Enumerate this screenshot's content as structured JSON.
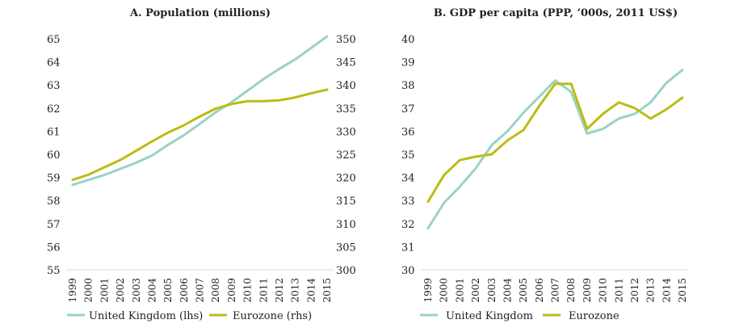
{
  "chart_data": [
    {
      "type": "line",
      "title": "A. Population (millions)",
      "x": [
        "1999",
        "2000",
        "2001",
        "2002",
        "2003",
        "2004",
        "2005",
        "2006",
        "2007",
        "2008",
        "2009",
        "2010",
        "2011",
        "2012",
        "2013",
        "2014",
        "2015"
      ],
      "ylim_left": [
        55,
        65
      ],
      "yticks_left": [
        "55",
        "56",
        "57",
        "58",
        "59",
        "60",
        "61",
        "62",
        "63",
        "64",
        "65"
      ],
      "ylim_right": [
        300,
        350
      ],
      "yticks_right": [
        "300",
        "305",
        "310",
        "315",
        "320",
        "325",
        "330",
        "335",
        "340",
        "345",
        "350"
      ],
      "grid": false,
      "legend_position": "bottom",
      "series": [
        {
          "name": "United Kingdom (lhs)",
          "axis": "left",
          "color": "#99d3c4",
          "values": [
            58.68,
            58.89,
            59.11,
            59.37,
            59.64,
            59.95,
            60.41,
            60.83,
            61.32,
            61.82,
            62.26,
            62.76,
            63.26,
            63.7,
            64.11,
            64.6,
            65.11
          ]
        },
        {
          "name": "Eurozone (rhs)",
          "axis": "right",
          "color": "#bcbc14",
          "values": [
            319.5,
            320.6,
            322.2,
            323.8,
            325.8,
            327.8,
            329.7,
            331.3,
            333.2,
            334.9,
            335.9,
            336.5,
            336.5,
            336.7,
            337.3,
            338.2,
            339.0
          ]
        }
      ]
    },
    {
      "type": "line",
      "title": "B. GDP per capita (PPP, ’000s, 2011 US$)",
      "x": [
        "1999",
        "2000",
        "2001",
        "2002",
        "2003",
        "2004",
        "2005",
        "2006",
        "2007",
        "2008",
        "2009",
        "2010",
        "2011",
        "2012",
        "2013",
        "2014",
        "2015"
      ],
      "ylim": [
        30,
        40
      ],
      "yticks": [
        "30",
        "31",
        "32",
        "33",
        "34",
        "35",
        "36",
        "37",
        "38",
        "39",
        "40"
      ],
      "grid": false,
      "legend_position": "bottom",
      "series": [
        {
          "name": "United Kingdom",
          "color": "#99d3c4",
          "values": [
            31.8,
            32.9,
            33.6,
            34.4,
            35.4,
            36.0,
            36.8,
            37.5,
            38.2,
            37.7,
            35.9,
            36.1,
            36.55,
            36.75,
            37.25,
            38.1,
            38.65
          ]
        },
        {
          "name": "Eurozone",
          "color": "#bcbc14",
          "values": [
            32.95,
            34.1,
            34.75,
            34.9,
            35.0,
            35.6,
            36.05,
            37.1,
            38.05,
            38.05,
            36.1,
            36.75,
            37.25,
            37.0,
            36.55,
            36.95,
            37.45
          ]
        }
      ]
    }
  ]
}
